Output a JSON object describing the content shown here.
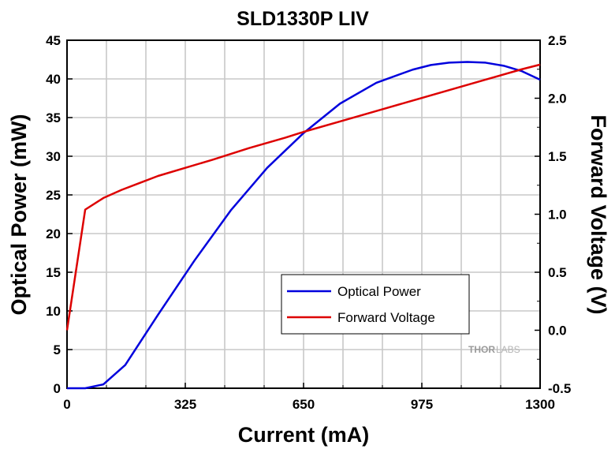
{
  "chart_data": {
    "type": "line",
    "title": "SLD1330P LIV",
    "xlabel": "Current (mA)",
    "ylabel": "Optical Power (mW)",
    "y2label": "Forward Voltage (V)",
    "xlim": [
      0,
      1300
    ],
    "ylim": [
      0,
      45
    ],
    "y2lim": [
      -0.5,
      2.5
    ],
    "xticks": [
      "0",
      "325",
      "650",
      "975",
      "1300"
    ],
    "yticks": [
      "0",
      "5",
      "10",
      "15",
      "20",
      "25",
      "30",
      "35",
      "40",
      "45"
    ],
    "y2ticks": [
      "-0.5",
      "0.0",
      "0.5",
      "1.0",
      "1.5",
      "2.0",
      "2.5"
    ],
    "grid": true,
    "legend": "center-right",
    "series": [
      {
        "name": "Optical Power",
        "axis": "left",
        "color": "#0000dd",
        "x": [
          0,
          50,
          100,
          160,
          250,
          350,
          450,
          550,
          650,
          750,
          850,
          950,
          1000,
          1050,
          1100,
          1150,
          1200,
          1250,
          1300
        ],
        "y": [
          0,
          0,
          0.5,
          3,
          9.5,
          16.5,
          23,
          28.5,
          33,
          36.8,
          39.5,
          41.2,
          41.8,
          42.1,
          42.2,
          42.1,
          41.7,
          41,
          39.9
        ]
      },
      {
        "name": "Forward Voltage",
        "axis": "right",
        "color": "#dd0000",
        "x": [
          0,
          50,
          100,
          150,
          200,
          250,
          325,
          400,
          500,
          600,
          650,
          750,
          850,
          950,
          1050,
          1150,
          1250,
          1300
        ],
        "y": [
          0,
          1.04,
          1.14,
          1.21,
          1.27,
          1.33,
          1.4,
          1.47,
          1.57,
          1.66,
          1.71,
          1.8,
          1.89,
          1.98,
          2.07,
          2.16,
          2.25,
          2.29
        ]
      }
    ]
  },
  "watermark": {
    "brand_a": "THOR",
    "brand_b": "LABS"
  }
}
